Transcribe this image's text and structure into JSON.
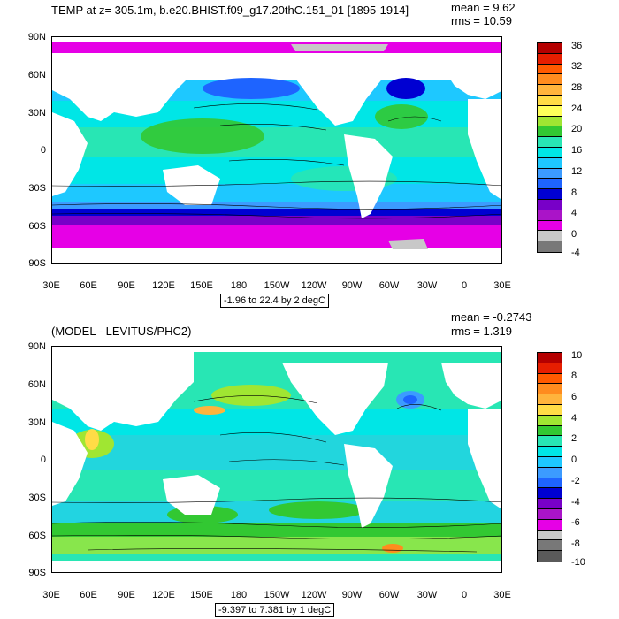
{
  "panels": [
    {
      "title": "TEMP at z= 305.1m, b.e20.BHIST.f09_g17.20thC.151_01 [1895-1914]",
      "stats": {
        "mean": "mean = 9.62",
        "rms": "rms = 10.59"
      },
      "range_label": "-1.96 to 22.4 by 2 degC",
      "lat_labels": [
        "90N",
        "60N",
        "30N",
        "0",
        "30S",
        "60S",
        "90S"
      ],
      "lon_labels": [
        "30E",
        "60E",
        "90E",
        "120E",
        "150E",
        "180",
        "150W",
        "120W",
        "90W",
        "60W",
        "30W",
        "0",
        "30E"
      ],
      "colorbar": {
        "labels": [
          "36",
          "32",
          "28",
          "24",
          "20",
          "16",
          "12",
          "8",
          "4",
          "0",
          "-4"
        ],
        "colors": [
          "#b40000",
          "#e61e00",
          "#ff5a00",
          "#ff8c1e",
          "#ffb43c",
          "#ffdc46",
          "#ffff5a",
          "#a0e632",
          "#32c832",
          "#28e6b4",
          "#00e6e6",
          "#1ec8ff",
          "#3c9bff",
          "#1e64ff",
          "#0000d2",
          "#7800c8",
          "#aa14c8",
          "#e600e6",
          "#c8c8c8",
          "#787878"
        ]
      }
    },
    {
      "title": "(MODEL - LEVITUS/PHC2)",
      "stats": {
        "mean": "mean = -0.2743",
        "rms": "rms = 1.319"
      },
      "range_label": "-9.397 to 7.381 by 1 degC",
      "lat_labels": [
        "90N",
        "60N",
        "30N",
        "0",
        "30S",
        "60S",
        "90S"
      ],
      "lon_labels": [
        "30E",
        "60E",
        "90E",
        "120E",
        "150E",
        "180",
        "150W",
        "120W",
        "90W",
        "60W",
        "30W",
        "0",
        "30E"
      ],
      "colorbar": {
        "labels": [
          "10",
          "8",
          "6",
          "4",
          "2",
          "0",
          "-2",
          "-4",
          "-6",
          "-8",
          "-10"
        ],
        "colors": [
          "#b40000",
          "#e61e00",
          "#ff5a00",
          "#ff8c1e",
          "#ffb43c",
          "#ffdc46",
          "#a0e632",
          "#32c832",
          "#28e6b4",
          "#00e6e6",
          "#1ec8ff",
          "#3c9bff",
          "#1e64ff",
          "#0000d2",
          "#7800c8",
          "#aa14c8",
          "#e600e6",
          "#c8c8c8",
          "#787878",
          "#5a5a5a"
        ]
      }
    }
  ]
}
